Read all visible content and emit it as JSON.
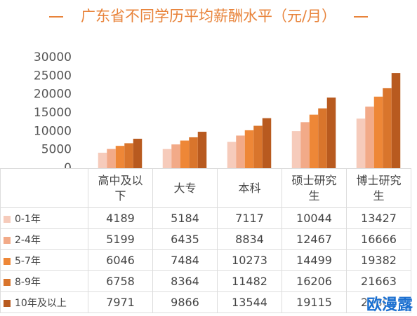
{
  "title": "广东省不同学历平均薪酬水平（元/月）",
  "watermark": "欧漫露",
  "chart_data": {
    "type": "bar",
    "categories": [
      "高中及以下",
      "大专",
      "本科",
      "硕士研究生",
      "博士研究生"
    ],
    "series": [
      {
        "name": "0-1年",
        "color": "#f6cbbb",
        "values": [
          4189,
          5184,
          7117,
          10044,
          13427
        ]
      },
      {
        "name": "2-4年",
        "color": "#f2aa88",
        "values": [
          5199,
          6435,
          8834,
          12467,
          16666
        ]
      },
      {
        "name": "5-7年",
        "color": "#ee8737",
        "values": [
          6046,
          7484,
          10273,
          14499,
          19382
        ]
      },
      {
        "name": "8-9年",
        "color": "#d9752c",
        "values": [
          6758,
          8364,
          11482,
          16206,
          21663
        ]
      },
      {
        "name": "10年及以上",
        "color": "#b85a1f",
        "values": [
          7971,
          9866,
          13544,
          19115,
          25800
        ]
      }
    ],
    "ylim": [
      0,
      30000
    ],
    "yticks": [
      0,
      5000,
      10000,
      15000,
      20000,
      25000,
      30000
    ]
  }
}
